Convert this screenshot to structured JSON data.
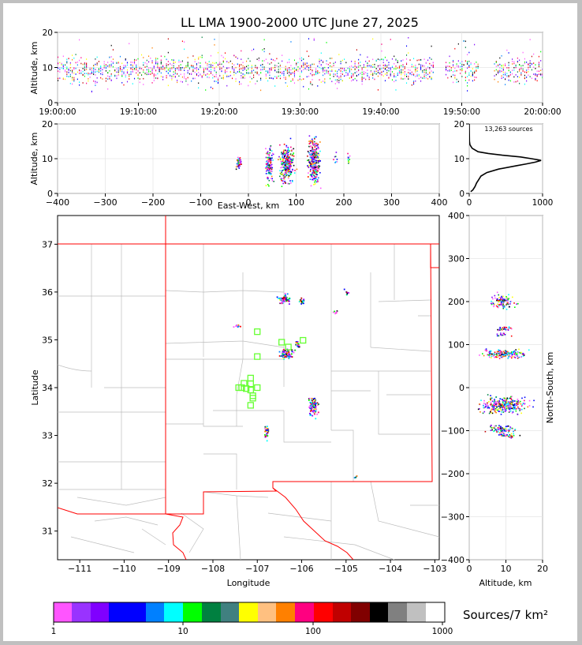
{
  "title": "LL LMA 1900-2000 UTC June 27, 2025",
  "colorbar_label": "Sources/7 km²",
  "colorbar_ticks": [
    "1",
    "10",
    "100",
    "1000"
  ],
  "colorbar_colors": [
    "#ff55ff",
    "#9933ff",
    "#8000ff",
    "#0000ff",
    "#0000ff",
    "#0080ff",
    "#00ffff",
    "#00ff00",
    "#008040",
    "#408080",
    "#ffff00",
    "#ffc080",
    "#ff8000",
    "#ff0080",
    "#ff0000",
    "#c00000",
    "#800000",
    "#000000",
    "#808080",
    "#c0c0c0",
    "#ffffff"
  ],
  "density_colors": [
    "#ff55ff",
    "#8000ff",
    "#0000ff",
    "#0080ff",
    "#00ffff",
    "#00ff00",
    "#008040",
    "#ffff00",
    "#ff8000",
    "#ff0080",
    "#ff0000",
    "#c00000",
    "#000000"
  ],
  "chart_data": [
    {
      "id": "time_height",
      "type": "scatter",
      "ylabel": "Altitude, km",
      "ylim": [
        0,
        20
      ],
      "yticks": [
        "0",
        "10",
        "20"
      ],
      "xticks": [
        "19:00:00",
        "19:10:00",
        "19:20:00",
        "19:30:00",
        "19:40:00",
        "19:50:00",
        "20:00:00"
      ],
      "x_minutes": [
        0,
        60
      ],
      "source_band_km": [
        5,
        15
      ],
      "active_periods_min": [
        [
          0,
          46.5
        ],
        [
          48,
          52
        ],
        [
          54,
          60
        ]
      ]
    },
    {
      "id": "ew_alt",
      "type": "heatmap",
      "xlabel": "East-West, km",
      "ylabel": "Altitude, km",
      "xlim": [
        -400,
        400
      ],
      "ylim": [
        0,
        20
      ],
      "xticks": [
        "−400",
        "−300",
        "−200",
        "−100",
        "0",
        "100",
        "200",
        "300",
        "400"
      ],
      "yticks": [
        "0",
        "10",
        "20"
      ],
      "clusters": [
        {
          "x": -22,
          "z": 9,
          "sx": 3,
          "sz": 1,
          "n": 40
        },
        {
          "x": 42,
          "z": 8.5,
          "sx": 4,
          "sz": 2.5,
          "n": 120
        },
        {
          "x": 80,
          "z": 8.5,
          "sx": 7,
          "sz": 2.5,
          "n": 280
        },
        {
          "x": 137,
          "z": 9.5,
          "sx": 6,
          "sz": 3,
          "n": 320
        },
        {
          "x": 182,
          "z": 10,
          "sx": 2,
          "sz": 1,
          "n": 8
        },
        {
          "x": 208,
          "z": 10,
          "sx": 2,
          "sz": 1,
          "n": 10
        }
      ]
    },
    {
      "id": "alt_hist",
      "type": "line",
      "annotation": "13,263 sources",
      "xlim": [
        0,
        1000
      ],
      "ylim": [
        0,
        20
      ],
      "xticks": [
        "0",
        "1000"
      ],
      "yticks": [
        "0",
        "10",
        "20"
      ],
      "profile": [
        [
          0.5,
          20
        ],
        [
          1,
          50
        ],
        [
          2,
          80
        ],
        [
          3,
          100
        ],
        [
          4,
          130
        ],
        [
          5,
          160
        ],
        [
          6,
          240
        ],
        [
          7,
          400
        ],
        [
          8,
          650
        ],
        [
          8.5,
          780
        ],
        [
          9,
          900
        ],
        [
          9.5,
          980
        ],
        [
          10,
          850
        ],
        [
          10.5,
          700
        ],
        [
          11,
          450
        ],
        [
          11.5,
          260
        ],
        [
          12,
          120
        ],
        [
          13,
          40
        ],
        [
          14,
          10
        ],
        [
          15,
          3
        ],
        [
          20,
          0
        ]
      ]
    },
    {
      "id": "plan_map",
      "type": "heatmap",
      "xlabel": "Longitude",
      "ylabel": "Latitude",
      "xlim": [
        -111.5,
        -102.9
      ],
      "ylim": [
        30.4,
        37.6
      ],
      "xticks": [
        "−111",
        "−110",
        "−109",
        "−108",
        "−107",
        "−106",
        "−105",
        "−104",
        "−103"
      ],
      "yticks": [
        "31",
        "32",
        "33",
        "34",
        "35",
        "36",
        "37"
      ],
      "stations": [
        [
          -107.0,
          35.17
        ],
        [
          -106.45,
          34.95
        ],
        [
          -105.97,
          34.99
        ],
        [
          -106.3,
          34.85
        ],
        [
          -107.0,
          34.65
        ],
        [
          -107.3,
          34.09
        ],
        [
          -107.15,
          34.2
        ],
        [
          -107.15,
          34.08
        ],
        [
          -107.15,
          33.95
        ],
        [
          -107.0,
          34.0
        ],
        [
          -107.42,
          34.0
        ],
        [
          -107.35,
          34.0
        ],
        [
          -107.25,
          33.98
        ],
        [
          -107.1,
          33.83
        ],
        [
          -107.1,
          33.78
        ],
        [
          -107.15,
          33.63
        ]
      ],
      "clusters": [
        {
          "lon": -106.4,
          "lat": 35.85,
          "slon": 0.07,
          "slat": 0.05,
          "n": 60
        },
        {
          "lon": -106.0,
          "lat": 35.8,
          "slon": 0.03,
          "slat": 0.04,
          "n": 20
        },
        {
          "lon": -105.0,
          "lat": 36.0,
          "slon": 0.03,
          "slat": 0.03,
          "n": 8
        },
        {
          "lon": -105.25,
          "lat": 35.58,
          "slon": 0.03,
          "slat": 0.03,
          "n": 8
        },
        {
          "lon": -107.45,
          "lat": 35.28,
          "slon": 0.03,
          "slat": 0.02,
          "n": 10
        },
        {
          "lon": -106.35,
          "lat": 34.72,
          "slon": 0.08,
          "slat": 0.05,
          "n": 70
        },
        {
          "lon": -106.1,
          "lat": 34.9,
          "slon": 0.03,
          "slat": 0.04,
          "n": 15
        },
        {
          "lon": -105.75,
          "lat": 33.62,
          "slon": 0.05,
          "slat": 0.1,
          "n": 100
        },
        {
          "lon": -106.8,
          "lat": 33.1,
          "slon": 0.02,
          "slat": 0.08,
          "n": 30
        },
        {
          "lon": -104.8,
          "lat": 32.15,
          "slon": 0.02,
          "slat": 0.01,
          "n": 4
        }
      ]
    },
    {
      "id": "alt_ns",
      "type": "heatmap",
      "xlabel": "Altitude, km",
      "ylabel": "North-South, km",
      "xlim": [
        0,
        20
      ],
      "ylim": [
        -400,
        400
      ],
      "xticks": [
        "0",
        "10",
        "20"
      ],
      "yticks": [
        "−400",
        "−300",
        "−200",
        "−100",
        "0",
        "100",
        "200",
        "300",
        "400"
      ],
      "clusters": [
        {
          "z": 9,
          "y": 200,
          "sz": 1.5,
          "sy": 8,
          "n": 100
        },
        {
          "z": 9,
          "y": 140,
          "sz": 1.2,
          "sy": 3,
          "n": 25
        },
        {
          "z": 9,
          "y": 125,
          "sz": 1,
          "sy": 2,
          "n": 15
        },
        {
          "z": 9,
          "y": 80,
          "sz": 2.8,
          "sy": 5,
          "n": 160
        },
        {
          "z": 9.5,
          "y": -40,
          "sz": 3,
          "sy": 9,
          "n": 300
        },
        {
          "z": 9,
          "y": -95,
          "sz": 2,
          "sy": 4,
          "n": 80
        },
        {
          "z": 10,
          "y": -110,
          "sz": 1.5,
          "sy": 2,
          "n": 40
        }
      ]
    }
  ]
}
